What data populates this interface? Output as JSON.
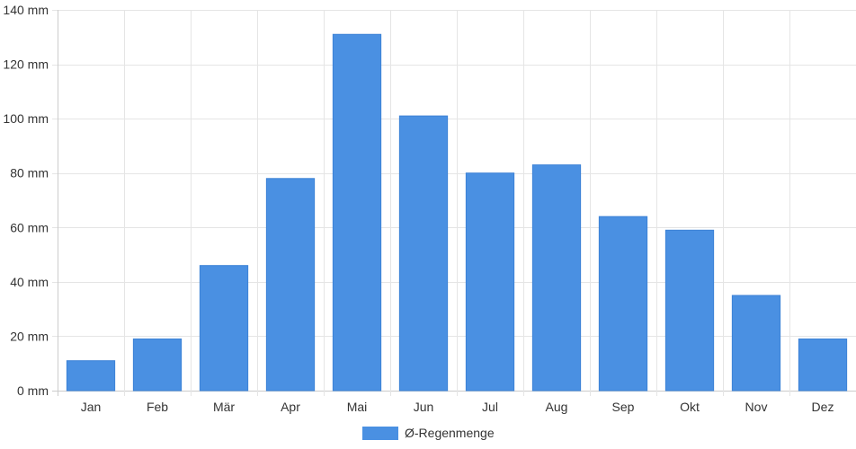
{
  "chart_data": {
    "type": "bar",
    "categories": [
      "Jan",
      "Feb",
      "Mär",
      "Apr",
      "Mai",
      "Jun",
      "Jul",
      "Aug",
      "Sep",
      "Okt",
      "Nov",
      "Dez"
    ],
    "series": [
      {
        "name": "Ø-Regenmenge",
        "values": [
          11,
          19,
          46,
          78,
          131,
          101,
          80,
          83,
          64,
          59,
          35,
          19
        ]
      }
    ],
    "ylim": [
      0,
      140
    ],
    "y_ticks": [
      "0 mm",
      "20 mm",
      "40 mm",
      "60 mm",
      "80 mm",
      "100 mm",
      "120 mm",
      "140 mm"
    ],
    "y_tick_values": [
      0,
      20,
      40,
      60,
      80,
      100,
      120,
      140
    ],
    "y_unit": "mm",
    "grid": true,
    "legend_position": "bottom",
    "colors": {
      "bar": "#4a90e2",
      "grid": "#e5e5e5",
      "axis": "#cccccc"
    }
  }
}
